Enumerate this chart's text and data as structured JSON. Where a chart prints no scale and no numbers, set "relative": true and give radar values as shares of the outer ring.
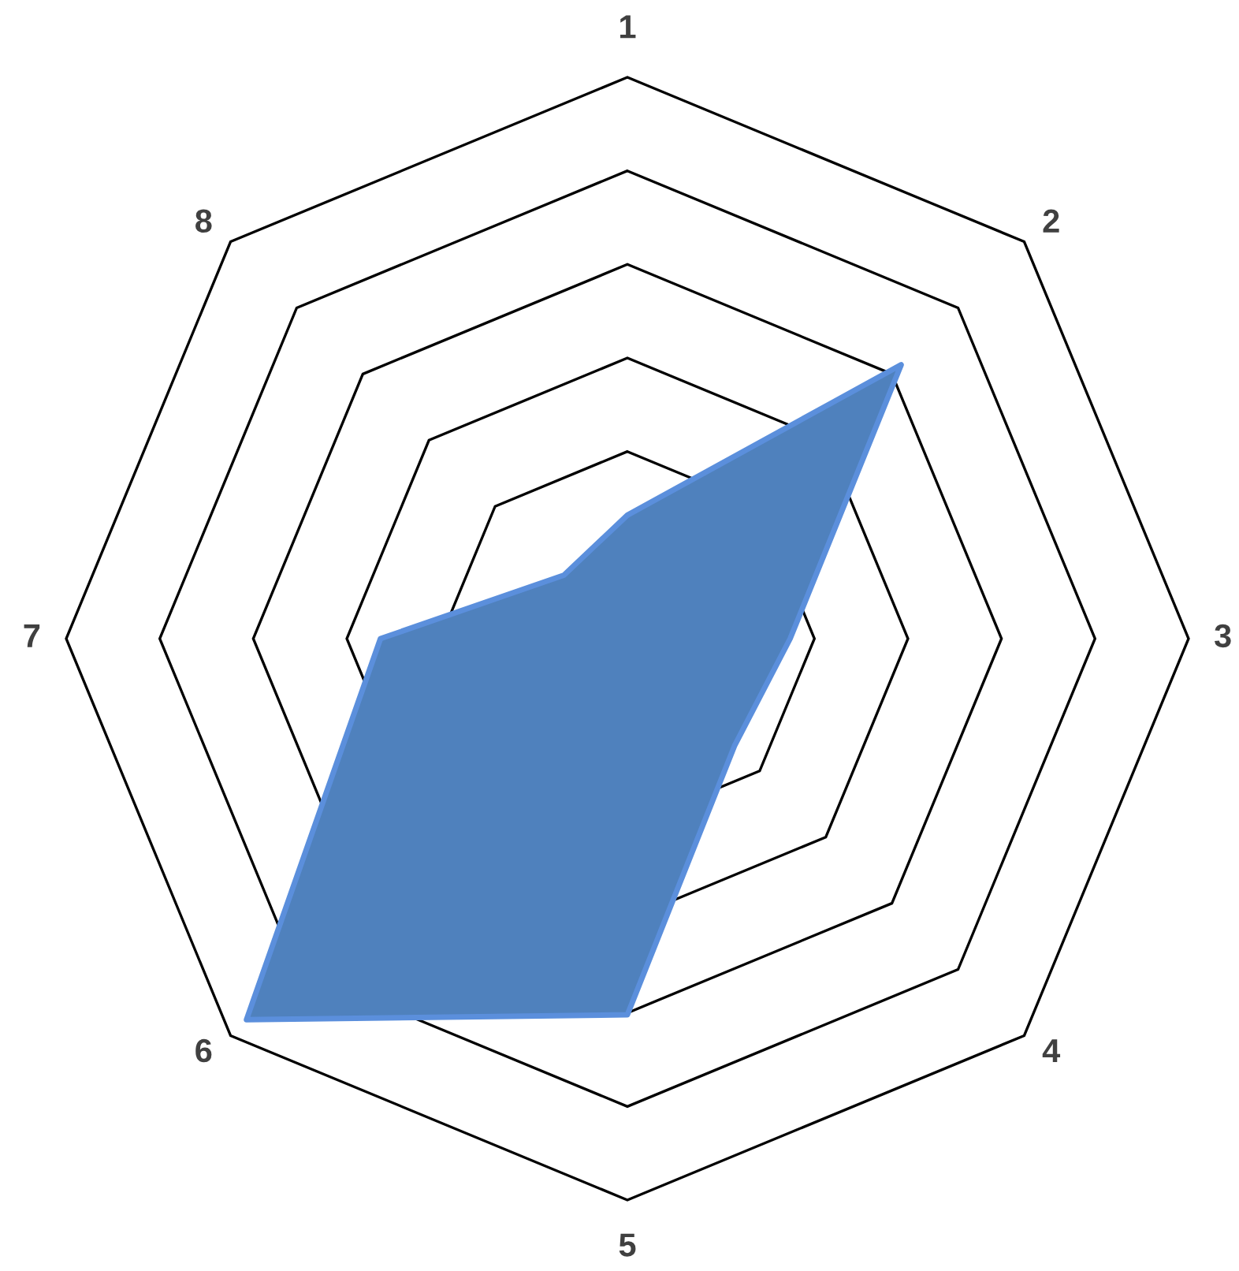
{
  "chart_data": {
    "type": "radar",
    "relative": true,
    "grid": true,
    "categories": [
      "1",
      "2",
      "3",
      "4",
      "5",
      "6",
      "7",
      "8"
    ],
    "series": [
      {
        "color": "#4f81bd",
        "values": [
          0.22,
          0.69,
          0.29,
          0.27,
          0.67,
          0.96,
          0.44,
          0.16
        ]
      }
    ]
  }
}
